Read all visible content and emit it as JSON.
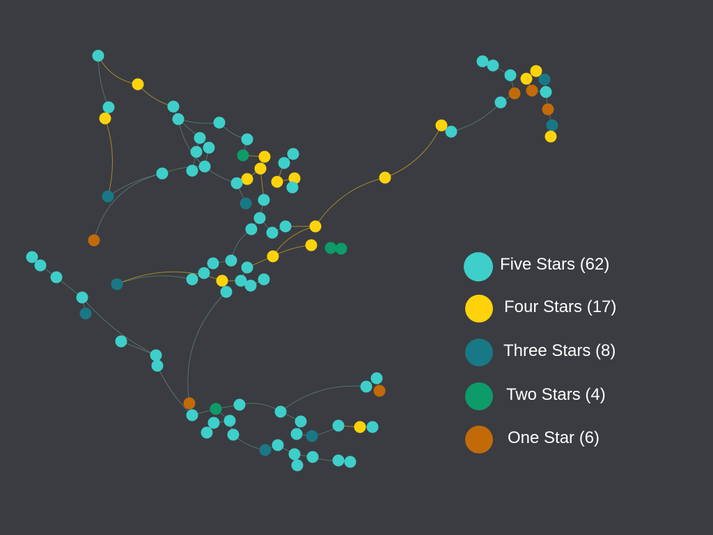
{
  "palette": {
    "background": "#3a3c41",
    "five": "#3ecfcb",
    "four": "#ffd30b",
    "three": "#197886",
    "two": "#0d9b6a",
    "one": "#c26a08",
    "edge_default": "#5e7d73",
    "edge_yellow": "#b8962a"
  },
  "legend": [
    {
      "key": "five",
      "label": "Five Stars (62)"
    },
    {
      "key": "four",
      "label": "Four Stars (17)"
    },
    {
      "key": "three",
      "label": "Three Stars (8)"
    },
    {
      "key": "two",
      "label": "Two Stars (4)"
    },
    {
      "key": "one",
      "label": "One Star (6)"
    }
  ]
}
